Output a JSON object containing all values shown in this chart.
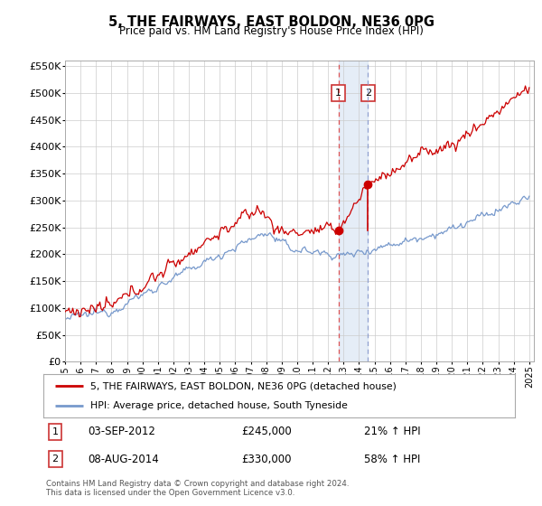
{
  "title": "5, THE FAIRWAYS, EAST BOLDON, NE36 0PG",
  "subtitle": "Price paid vs. HM Land Registry's House Price Index (HPI)",
  "legend_line1": "5, THE FAIRWAYS, EAST BOLDON, NE36 0PG (detached house)",
  "legend_line2": "HPI: Average price, detached house, South Tyneside",
  "annotation1_date": "03-SEP-2012",
  "annotation1_price": 245000,
  "annotation2_date": "08-AUG-2014",
  "annotation2_price": 330000,
  "footnote": "Contains HM Land Registry data © Crown copyright and database right 2024.\nThis data is licensed under the Open Government Licence v3.0.",
  "ylim": [
    0,
    560000
  ],
  "yticks": [
    0,
    50000,
    100000,
    150000,
    200000,
    250000,
    300000,
    350000,
    400000,
    450000,
    500000,
    550000
  ],
  "red_color": "#cc0000",
  "blue_color": "#7799cc",
  "vline1_color": "#dd4444",
  "vline2_color": "#8899cc",
  "box_edge_color": "#cc3333",
  "span_color": "#ccddf0",
  "background_color": "#ffffff",
  "grid_color": "#cccccc"
}
